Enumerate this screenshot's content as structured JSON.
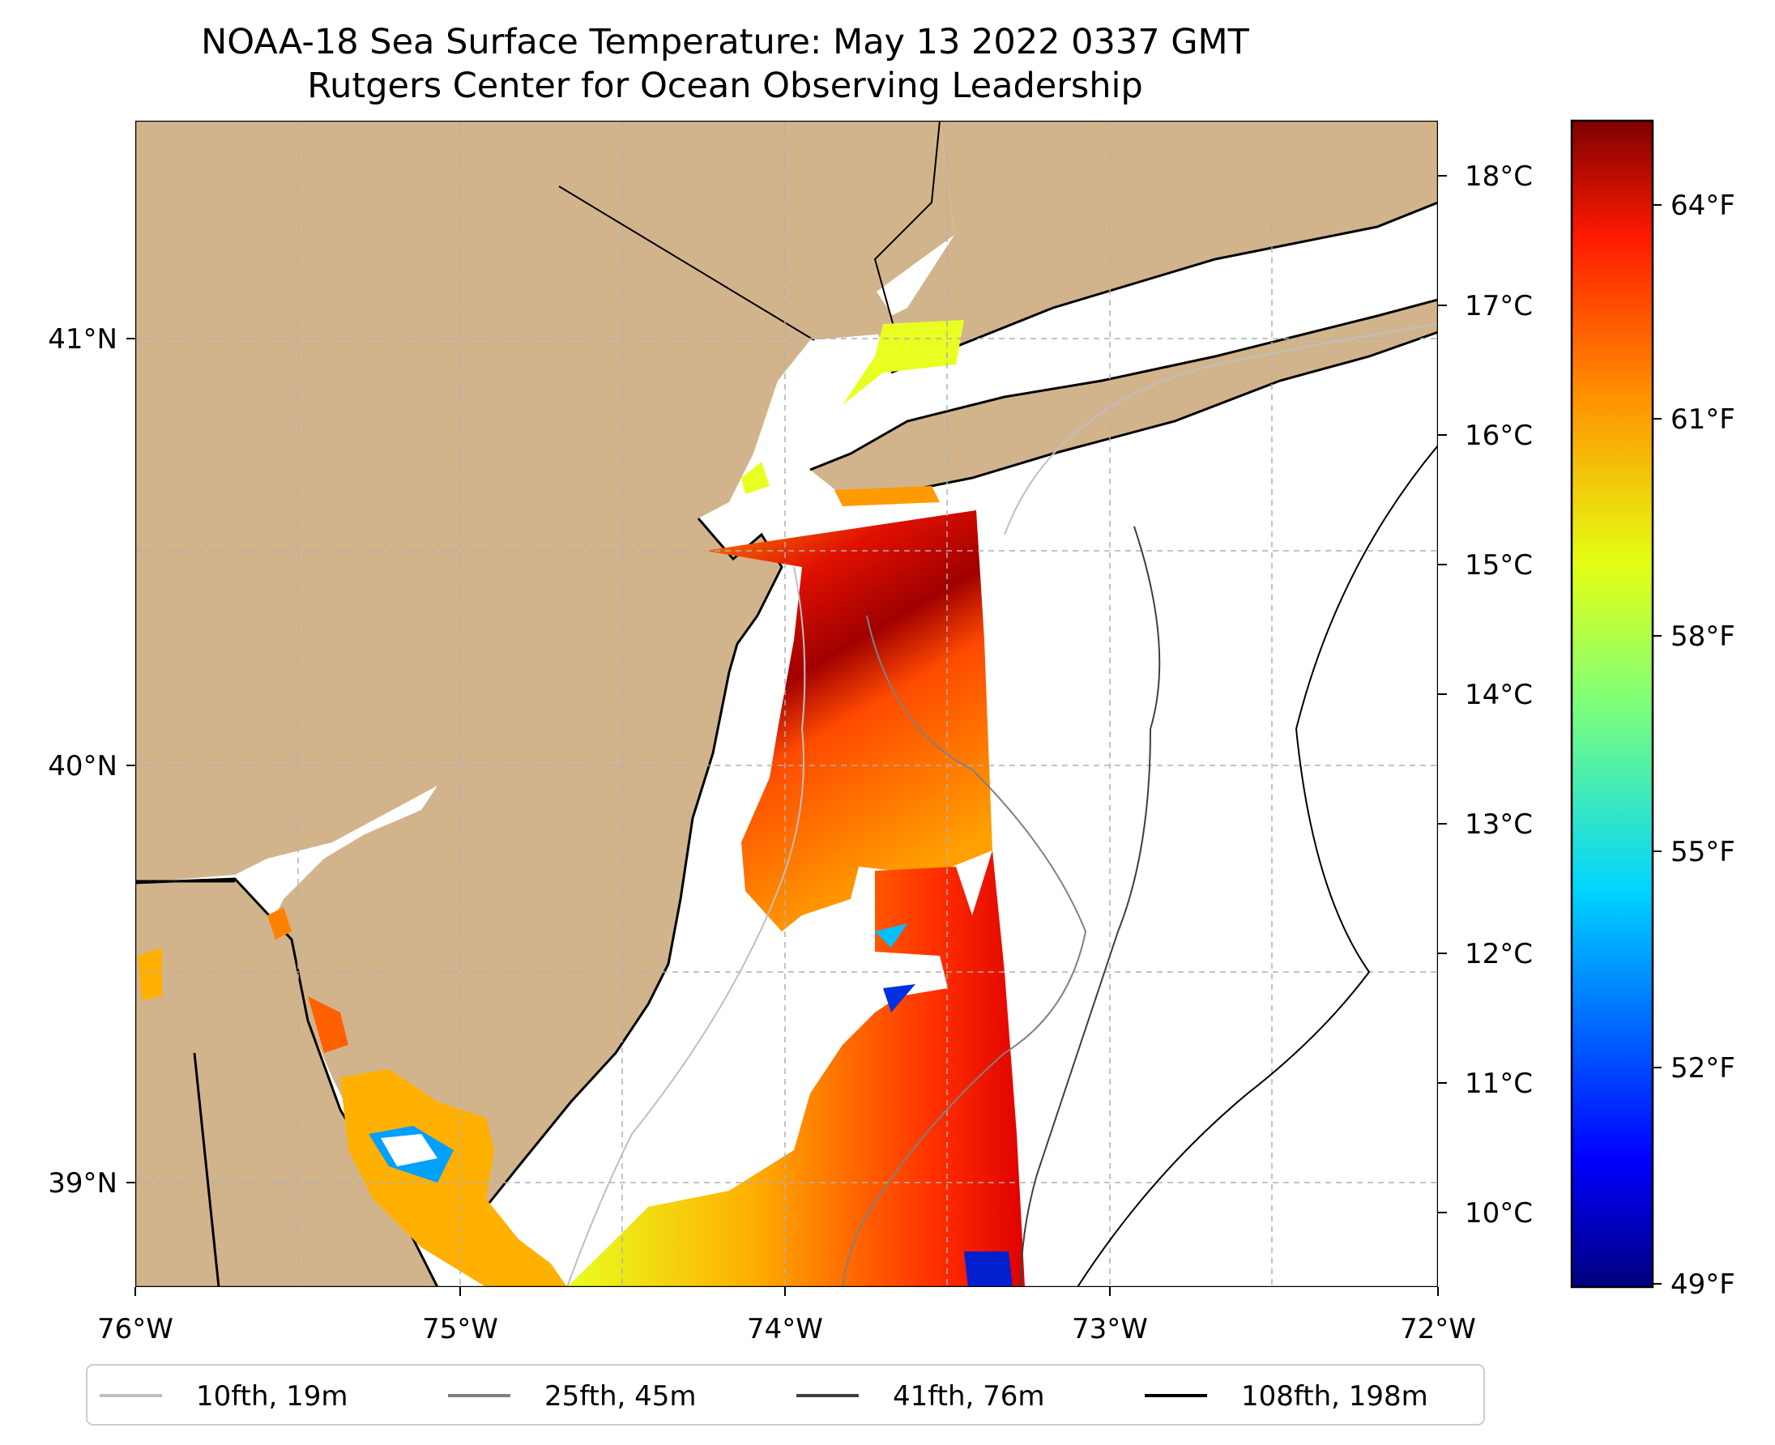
{
  "map": {
    "title_line1": "NOAA-18 Sea Surface Temperature: May 13 2022 0337 GMT",
    "title_line2": "Rutgers Center for Ocean Observing Leadership",
    "lon_ticks": [
      "76°W",
      "75°W",
      "74°W",
      "73°W",
      "72°W"
    ],
    "lat_ticks": [
      "41°N",
      "40°N",
      "39°N"
    ],
    "colors": {
      "land": "#d2b48c",
      "coastline": "#000000",
      "gridline": "#b0b0b0"
    }
  },
  "colorbar": {
    "celsius_ticks": [
      "18°C",
      "17°C",
      "16°C",
      "15°C",
      "14°C",
      "13°C",
      "12°C",
      "11°C",
      "10°C"
    ],
    "fahrenheit_ticks": [
      "64°F",
      "61°F",
      "58°F",
      "55°F",
      "52°F",
      "49°F"
    ],
    "colormap": "jet"
  },
  "legend": {
    "items": [
      {
        "label": "10fth, 19m",
        "color": "#bfbfbf"
      },
      {
        "label": "25fth, 45m",
        "color": "#808080"
      },
      {
        "label": "41fth, 76m",
        "color": "#404040"
      },
      {
        "label": "108fth, 198m",
        "color": "#000000"
      }
    ]
  }
}
